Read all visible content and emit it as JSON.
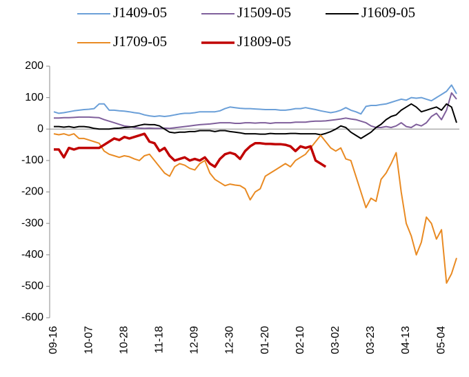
{
  "chart_data": {
    "type": "line",
    "categories": [
      "09-16",
      null,
      null,
      null,
      null,
      null,
      null,
      "10-07",
      null,
      null,
      null,
      null,
      null,
      null,
      "10-28",
      null,
      null,
      null,
      null,
      null,
      null,
      "11-18",
      null,
      null,
      null,
      null,
      null,
      null,
      "12-09",
      null,
      null,
      null,
      null,
      null,
      null,
      "12-30",
      null,
      null,
      null,
      null,
      null,
      null,
      "01-20",
      null,
      null,
      null,
      null,
      null,
      null,
      "02-10",
      null,
      null,
      null,
      null,
      null,
      null,
      "03-02",
      null,
      null,
      null,
      null,
      null,
      null,
      "03-23",
      null,
      null,
      null,
      null,
      null,
      null,
      "04-13",
      null,
      null,
      null,
      null,
      null,
      null,
      "05-04",
      null,
      null,
      null
    ],
    "ylim": [
      -600,
      200
    ],
    "yticks": [
      -600,
      -500,
      -400,
      -300,
      -200,
      -100,
      0,
      100,
      200
    ],
    "series": [
      {
        "name": "J1409-05",
        "color": "#6a9fd8",
        "values": [
          55,
          50,
          52,
          55,
          58,
          60,
          62,
          63,
          65,
          80,
          80,
          60,
          60,
          58,
          57,
          55,
          52,
          50,
          45,
          42,
          40,
          42,
          40,
          42,
          45,
          48,
          50,
          50,
          52,
          55,
          55,
          55,
          55,
          58,
          65,
          70,
          68,
          66,
          65,
          65,
          64,
          63,
          62,
          62,
          62,
          60,
          60,
          62,
          65,
          65,
          68,
          65,
          62,
          58,
          55,
          52,
          55,
          60,
          68,
          60,
          55,
          48,
          72,
          75,
          75,
          78,
          80,
          85,
          90,
          95,
          92,
          100,
          98,
          100,
          95,
          90,
          100,
          110,
          120,
          140,
          112
        ]
      },
      {
        "name": "J1509-05",
        "color": "#7f5f9b",
        "values": [
          35,
          35,
          36,
          36,
          37,
          38,
          38,
          38,
          37,
          36,
          30,
          25,
          20,
          15,
          10,
          8,
          5,
          3,
          2,
          3,
          2,
          2,
          3,
          2,
          4,
          6,
          8,
          10,
          12,
          14,
          15,
          16,
          18,
          20,
          20,
          20,
          18,
          18,
          20,
          20,
          19,
          20,
          20,
          18,
          20,
          20,
          20,
          20,
          22,
          22,
          22,
          24,
          25,
          25,
          26,
          28,
          30,
          32,
          35,
          32,
          30,
          25,
          20,
          10,
          5,
          5,
          8,
          5,
          10,
          20,
          8,
          5,
          15,
          10,
          20,
          40,
          50,
          30,
          60,
          115,
          95
        ]
      },
      {
        "name": "J1609-05",
        "color": "#000000",
        "values": [
          8,
          8,
          6,
          8,
          5,
          8,
          8,
          6,
          2,
          0,
          0,
          0,
          2,
          3,
          5,
          6,
          8,
          12,
          15,
          14,
          14,
          10,
          0,
          -10,
          -12,
          -10,
          -10,
          -8,
          -8,
          -5,
          -5,
          -5,
          -8,
          -5,
          -5,
          -8,
          -10,
          -12,
          -15,
          -15,
          -15,
          -16,
          -16,
          -14,
          -15,
          -15,
          -15,
          -14,
          -14,
          -15,
          -15,
          -15,
          -15,
          -18,
          -14,
          -8,
          0,
          10,
          5,
          -10,
          -20,
          -30,
          -20,
          -10,
          5,
          15,
          30,
          40,
          45,
          60,
          70,
          80,
          70,
          55,
          60,
          65,
          70,
          60,
          80,
          70,
          20
        ]
      },
      {
        "name": "J1709-05",
        "color": "#e98a22",
        "values": [
          -15,
          -18,
          -15,
          -20,
          -15,
          -30,
          -30,
          -35,
          -40,
          -45,
          -70,
          -80,
          -85,
          -90,
          -85,
          -88,
          -95,
          -100,
          -85,
          -80,
          -100,
          -120,
          -140,
          -150,
          -120,
          -110,
          -115,
          -125,
          -130,
          -110,
          -100,
          -140,
          -160,
          -170,
          -180,
          -175,
          -178,
          -180,
          -190,
          -225,
          -200,
          -190,
          -150,
          -140,
          -130,
          -120,
          -110,
          -120,
          -100,
          -90,
          -80,
          -60,
          -40,
          -20,
          -40,
          -60,
          -70,
          -60,
          -95,
          -100,
          -150,
          -200,
          -250,
          -220,
          -230,
          -160,
          -140,
          -110,
          -75,
          -200,
          -300,
          -340,
          -400,
          -360,
          -280,
          -300,
          -350,
          -320,
          -490,
          -460,
          -410
        ]
      },
      {
        "name": "J1809-05",
        "color": "#c00000",
        "values": [
          -65,
          -65,
          -90,
          -60,
          -65,
          -60,
          -60,
          -60,
          -60,
          -60,
          -50,
          -40,
          -30,
          -35,
          -25,
          -30,
          -25,
          -20,
          -15,
          -40,
          -45,
          -70,
          -60,
          -85,
          -100,
          -95,
          -90,
          -100,
          -95,
          -100,
          -90,
          -110,
          -120,
          -95,
          -80,
          -75,
          -80,
          -95,
          -70,
          -55,
          -45,
          -45,
          -47,
          -47,
          -48,
          -48,
          -50,
          -55,
          -70,
          -55,
          -60,
          -55,
          -100,
          -110,
          -120,
          null,
          null,
          null,
          null,
          null,
          null,
          null,
          null,
          null,
          null,
          null,
          null,
          null,
          null,
          null,
          null,
          null,
          null,
          null,
          null,
          null,
          null,
          null,
          null,
          null,
          null
        ]
      }
    ]
  }
}
